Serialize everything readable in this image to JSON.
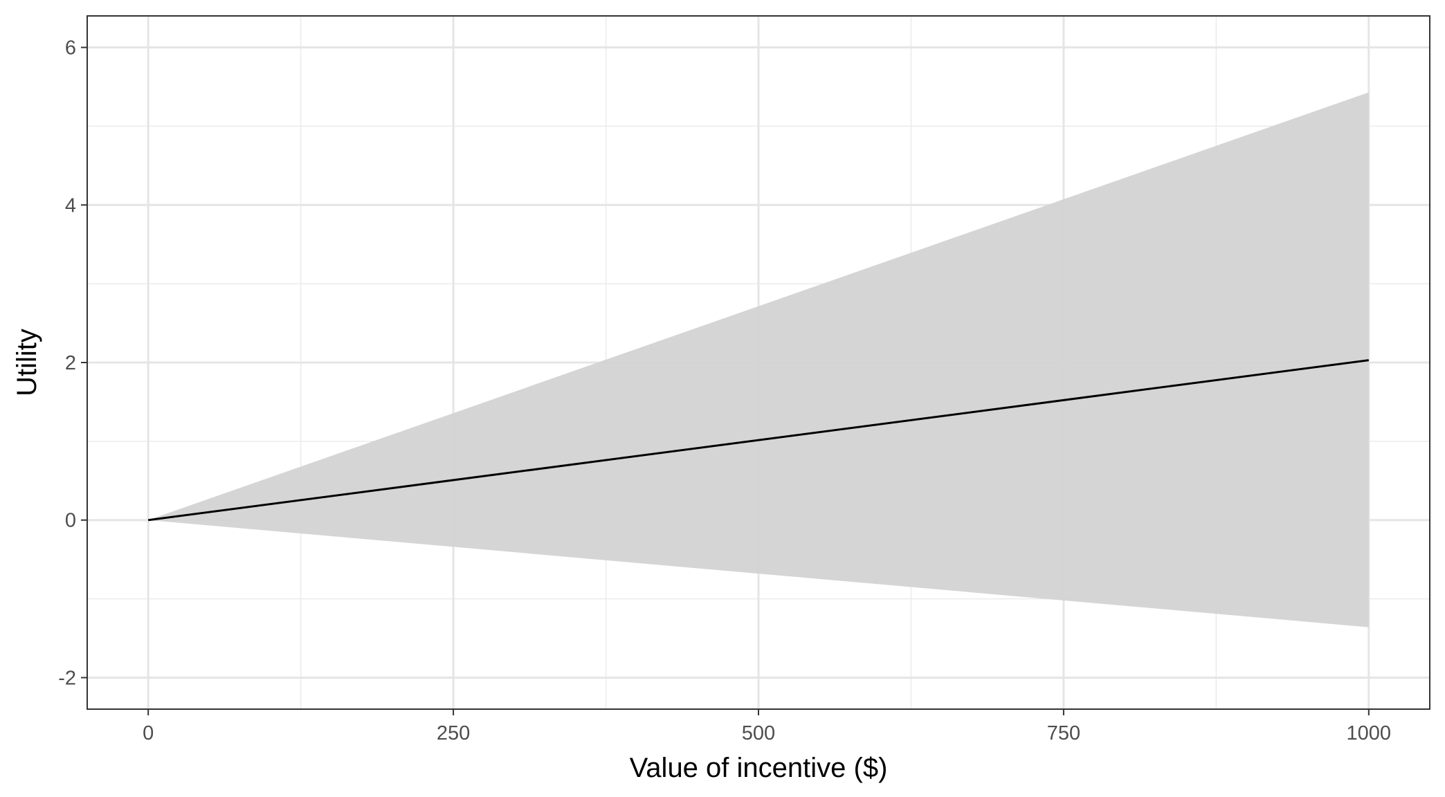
{
  "chart_data": {
    "type": "line",
    "title": "",
    "xlabel": "Value of incentive ($)",
    "ylabel": "Utility",
    "xlim": [
      -50,
      1050
    ],
    "ylim": [
      -2.4,
      6.4
    ],
    "x_ticks": [
      0,
      250,
      500,
      750,
      1000
    ],
    "x_tick_labels": [
      "0",
      "250",
      "500",
      "750",
      "1000"
    ],
    "y_ticks": [
      -2,
      0,
      2,
      4,
      6
    ],
    "y_tick_labels": [
      "-2",
      "0",
      "2",
      "4",
      "6"
    ],
    "x_minor_ticks": [
      125,
      375,
      625,
      875
    ],
    "y_minor_ticks": [
      -1,
      1,
      3,
      5
    ],
    "grid": true,
    "series": [
      {
        "type": "line",
        "color": "#000000",
        "x": [
          0,
          1000
        ],
        "y": [
          0,
          2.03
        ]
      },
      {
        "type": "ribbon",
        "color": "#d3d3d3",
        "x": [
          0,
          1000
        ],
        "ymin": [
          0,
          -1.36
        ],
        "ymax": [
          0,
          5.43
        ]
      }
    ]
  }
}
